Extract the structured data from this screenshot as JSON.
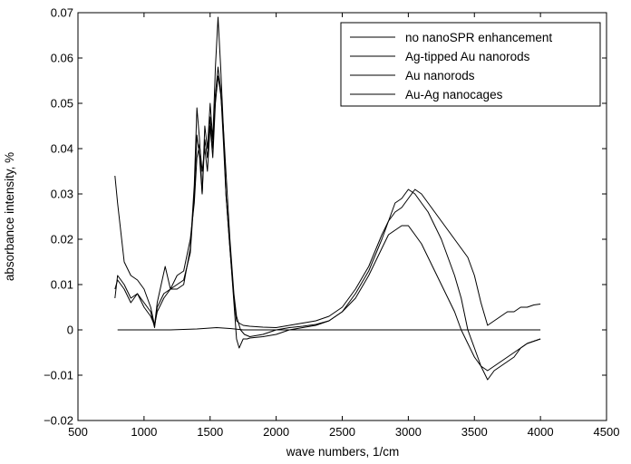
{
  "chart_data": {
    "type": "line",
    "title": "",
    "xlabel": "wave numbers, 1/cm",
    "ylabel": "absorbance intensity, %",
    "xlim": [
      500,
      4500
    ],
    "ylim": [
      -0.02,
      0.07
    ],
    "xticks": [
      500,
      1000,
      1500,
      2000,
      2500,
      3000,
      3500,
      4000,
      4500
    ],
    "yticks": [
      -0.02,
      -0.01,
      0,
      0.01,
      0.02,
      0.03,
      0.04,
      0.05,
      0.06,
      0.07
    ],
    "xtick_labels": [
      "500",
      "1000",
      "1500",
      "2000",
      "2500",
      "3000",
      "3500",
      "4000",
      "4500"
    ],
    "ytick_labels": [
      "−0.02",
      "−0.01",
      "0",
      "0.01",
      "0.02",
      "0.03",
      "0.04",
      "0.05",
      "0.06",
      "0.07"
    ],
    "grid": false,
    "legend_position": "top-right",
    "line_color": "#000000",
    "series": [
      {
        "name": "no nanoSPR enhancement",
        "x": [
          800,
          1000,
          1200,
          1400,
          1550,
          1650,
          1750,
          2000,
          2500,
          3000,
          3500,
          4000
        ],
        "y": [
          0,
          0,
          0,
          0.0002,
          0.0005,
          0.0003,
          0,
          0,
          0,
          0,
          0,
          0
        ]
      },
      {
        "name": "Ag-tipped Au nanorods",
        "x": [
          780,
          800,
          850,
          900,
          950,
          1000,
          1050,
          1080,
          1100,
          1130,
          1160,
          1200,
          1250,
          1300,
          1350,
          1380,
          1400,
          1420,
          1440,
          1460,
          1480,
          1500,
          1520,
          1540,
          1560,
          1580,
          1600,
          1620,
          1650,
          1680,
          1700,
          1730,
          1760,
          1800,
          1900,
          2000,
          2100,
          2200,
          2300,
          2400,
          2500,
          2600,
          2700,
          2800,
          2850,
          2900,
          2950,
          3000,
          3050,
          3100,
          3150,
          3200,
          3250,
          3300,
          3350,
          3400,
          3450,
          3500,
          3550,
          3600,
          3650,
          3700,
          3750,
          3800,
          3850,
          3900,
          3950,
          4000
        ],
        "y": [
          0.034,
          0.028,
          0.015,
          0.012,
          0.011,
          0.009,
          0.005,
          0.001,
          0.006,
          0.01,
          0.014,
          0.009,
          0.012,
          0.013,
          0.02,
          0.028,
          0.038,
          0.041,
          0.035,
          0.04,
          0.035,
          0.045,
          0.038,
          0.05,
          0.056,
          0.052,
          0.045,
          0.035,
          0.02,
          0.008,
          0.003,
          0.0,
          -0.001,
          -0.0015,
          -0.001,
          0.0,
          0.0005,
          0.0008,
          0.0012,
          0.002,
          0.004,
          0.007,
          0.012,
          0.018,
          0.021,
          0.022,
          0.023,
          0.023,
          0.021,
          0.019,
          0.016,
          0.013,
          0.01,
          0.007,
          0.004,
          0.0,
          -0.003,
          -0.006,
          -0.008,
          -0.009,
          -0.008,
          -0.007,
          -0.006,
          -0.005,
          -0.004,
          -0.003,
          -0.0025,
          -0.002
        ]
      },
      {
        "name": "Au nanorods",
        "x": [
          780,
          800,
          850,
          900,
          950,
          1000,
          1050,
          1080,
          1100,
          1150,
          1200,
          1250,
          1300,
          1350,
          1380,
          1400,
          1420,
          1440,
          1460,
          1480,
          1500,
          1520,
          1540,
          1560,
          1580,
          1600,
          1620,
          1650,
          1680,
          1700,
          1720,
          1750,
          1780,
          1800,
          1900,
          2000,
          2100,
          2200,
          2300,
          2400,
          2500,
          2600,
          2700,
          2800,
          2850,
          2900,
          2950,
          3000,
          3050,
          3100,
          3150,
          3200,
          3250,
          3300,
          3350,
          3400,
          3450,
          3500,
          3550,
          3600,
          3650,
          3700,
          3750,
          3800,
          3850,
          3900,
          3950,
          4000
        ],
        "y": [
          0.007,
          0.012,
          0.01,
          0.007,
          0.008,
          0.006,
          0.004,
          0.0005,
          0.005,
          0.008,
          0.009,
          0.009,
          0.01,
          0.018,
          0.032,
          0.049,
          0.042,
          0.03,
          0.045,
          0.04,
          0.05,
          0.042,
          0.058,
          0.069,
          0.058,
          0.045,
          0.03,
          0.018,
          0.006,
          -0.002,
          -0.004,
          -0.002,
          -0.002,
          -0.0018,
          -0.0015,
          -0.001,
          0.0,
          0.0005,
          0.001,
          0.002,
          0.004,
          0.008,
          0.013,
          0.02,
          0.024,
          0.028,
          0.029,
          0.031,
          0.03,
          0.028,
          0.026,
          0.023,
          0.02,
          0.016,
          0.012,
          0.007,
          0.0,
          -0.004,
          -0.008,
          -0.011,
          -0.009,
          -0.008,
          -0.007,
          -0.006,
          -0.004,
          -0.003,
          -0.0025,
          -0.002
        ]
      },
      {
        "name": "Au-Ag nanocages",
        "x": [
          780,
          800,
          850,
          900,
          950,
          1000,
          1050,
          1080,
          1100,
          1150,
          1200,
          1250,
          1300,
          1350,
          1380,
          1400,
          1420,
          1440,
          1460,
          1480,
          1500,
          1520,
          1540,
          1560,
          1580,
          1600,
          1620,
          1650,
          1680,
          1700,
          1720,
          1750,
          1800,
          1900,
          2000,
          2100,
          2200,
          2300,
          2400,
          2500,
          2600,
          2700,
          2800,
          2850,
          2900,
          2950,
          3000,
          3050,
          3100,
          3150,
          3200,
          3250,
          3300,
          3350,
          3400,
          3450,
          3500,
          3550,
          3600,
          3650,
          3700,
          3750,
          3800,
          3850,
          3900,
          3950,
          4000
        ],
        "y": [
          0.009,
          0.011,
          0.009,
          0.006,
          0.008,
          0.005,
          0.003,
          0.001,
          0.004,
          0.007,
          0.009,
          0.01,
          0.011,
          0.017,
          0.03,
          0.043,
          0.038,
          0.03,
          0.042,
          0.038,
          0.047,
          0.04,
          0.052,
          0.058,
          0.053,
          0.042,
          0.03,
          0.018,
          0.007,
          0.002,
          0.0015,
          0.001,
          0.0008,
          0.0006,
          0.0005,
          0.001,
          0.0015,
          0.002,
          0.003,
          0.005,
          0.009,
          0.014,
          0.021,
          0.024,
          0.026,
          0.027,
          0.029,
          0.031,
          0.03,
          0.028,
          0.026,
          0.024,
          0.022,
          0.02,
          0.018,
          0.016,
          0.012,
          0.006,
          0.001,
          0.002,
          0.003,
          0.004,
          0.004,
          0.005,
          0.005,
          0.0055,
          0.0057
        ]
      }
    ]
  }
}
